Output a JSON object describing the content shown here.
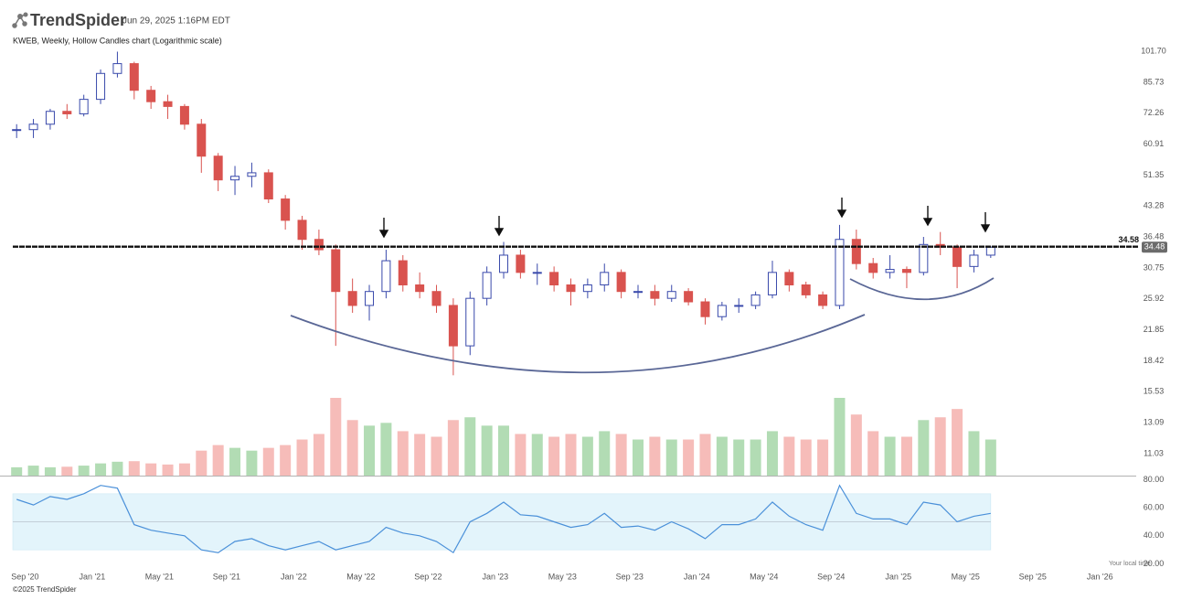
{
  "chart_data": {
    "type": "candlestick",
    "brand": "TrendSpider",
    "timestamp": "Jun 29, 2025 1:16PM EDT",
    "title": "KWEB, Weekly, Hollow Candles chart (Logarithmic scale)",
    "footer": "©2025 TrendSpider",
    "local_time_note": "Your local time",
    "log_scale": true,
    "grid": false,
    "up_color": "#3949ab",
    "down_color": "#d9534f",
    "volume_up_color": "#a5d6a7",
    "volume_down_color": "#f4b0ad",
    "x": [
      "2020-08",
      "2020-09",
      "2020-10",
      "2020-11",
      "2020-12",
      "2021-01",
      "2021-02",
      "2021-03",
      "2021-04",
      "2021-05",
      "2021-06",
      "2021-07",
      "2021-08",
      "2021-09",
      "2021-10",
      "2021-11",
      "2021-12",
      "2022-01",
      "2022-02",
      "2022-03",
      "2022-04",
      "2022-05",
      "2022-06",
      "2022-07",
      "2022-08",
      "2022-09",
      "2022-10",
      "2022-11",
      "2022-12",
      "2023-01",
      "2023-02",
      "2023-03",
      "2023-04",
      "2023-05",
      "2023-06",
      "2023-07",
      "2023-08",
      "2023-09",
      "2023-10",
      "2023-11",
      "2023-12",
      "2024-01",
      "2024-02",
      "2024-03",
      "2024-04",
      "2024-05",
      "2024-06",
      "2024-07",
      "2024-08",
      "2024-09",
      "2024-10",
      "2024-11",
      "2024-12",
      "2025-01",
      "2025-02",
      "2025-03",
      "2025-04",
      "2025-05",
      "2025-06"
    ],
    "open": [
      66,
      66,
      68,
      73,
      72,
      78,
      90,
      95,
      82,
      77,
      75,
      68,
      57,
      50,
      51,
      52,
      45,
      40,
      36,
      34,
      27,
      25,
      27,
      32,
      28,
      27,
      25,
      20,
      26,
      30,
      33,
      30,
      30,
      28,
      27,
      28,
      30,
      27,
      27,
      26,
      27,
      25.5,
      23.5,
      25,
      25,
      26.5,
      30,
      28,
      26.5,
      25,
      36,
      31.5,
      30,
      30.5,
      30,
      35,
      34.5,
      31,
      33
    ],
    "high": [
      68,
      70,
      74,
      76,
      80,
      92,
      101.5,
      96,
      84,
      80,
      76,
      70,
      58,
      54,
      55,
      53,
      46,
      41,
      38,
      35,
      29,
      28,
      34,
      33,
      30,
      28,
      26,
      27,
      31,
      35.5,
      34,
      31.5,
      31,
      29,
      29,
      31.5,
      30.5,
      28,
      28,
      28,
      27.5,
      26,
      25.5,
      26,
      27,
      32,
      30.5,
      28.5,
      27,
      39,
      38,
      32.5,
      33,
      31,
      36.5,
      37.5,
      35,
      34,
      34.6
    ],
    "low": [
      63,
      63,
      66,
      70,
      71,
      76,
      88,
      78,
      74,
      70,
      66,
      52,
      47,
      46,
      48,
      44,
      38,
      34,
      33,
      20,
      24,
      23,
      26,
      27,
      26,
      24,
      17,
      19,
      25,
      29,
      29,
      28,
      27,
      25,
      26,
      27,
      26,
      26,
      25,
      25.5,
      25,
      22.5,
      23,
      24,
      24.5,
      26,
      27,
      26,
      24.5,
      24.5,
      30.5,
      29,
      29,
      27.5,
      29.5,
      33,
      27.5,
      30,
      32.5
    ],
    "close": [
      66,
      68,
      73,
      72,
      78,
      90,
      95,
      82,
      77,
      75,
      68,
      57,
      50,
      51,
      52,
      45,
      40,
      36,
      34,
      27,
      25,
      27,
      32,
      28,
      27,
      25,
      20,
      26,
      30,
      33,
      30,
      30,
      28,
      27,
      28,
      30,
      27,
      27,
      26,
      27,
      25.5,
      23.5,
      25,
      25,
      26.5,
      30,
      28,
      26.5,
      25,
      36,
      31.5,
      30,
      30.5,
      30,
      35,
      34.5,
      31,
      33,
      34.48
    ],
    "volume": [
      1.5,
      1.8,
      1.5,
      1.6,
      1.8,
      2.2,
      2.5,
      2.6,
      2.2,
      2.0,
      2.2,
      4.5,
      5.5,
      5.0,
      4.5,
      5.0,
      5.5,
      6.5,
      7.5,
      14,
      10,
      9,
      9.5,
      8,
      7.5,
      7,
      10,
      10.5,
      9,
      9,
      7.5,
      7.5,
      7,
      7.5,
      7,
      8,
      7.5,
      6.5,
      7,
      6.5,
      6.5,
      7.5,
      7,
      6.5,
      6.5,
      8,
      7,
      6.5,
      6.5,
      14,
      11,
      8,
      7,
      7,
      10,
      10.5,
      12,
      8,
      6.5
    ],
    "ylim": [
      9.77,
      108.1
    ],
    "yticks": [
      {
        "value": 101.7,
        "label": "101.70"
      },
      85.73,
      72.26,
      60.91,
      51.35,
      43.28,
      36.48,
      30.75,
      25.92,
      21.85,
      18.42,
      15.53,
      13.09,
      11.03
    ],
    "xlim": [
      "2020-08",
      "2026-03"
    ],
    "xticks": [
      {
        "value": "2020-09",
        "label": "Sep '20"
      },
      {
        "value": "2021-01",
        "label": "Jan '21"
      },
      {
        "value": "2021-05",
        "label": "May '21"
      },
      {
        "value": "2021-09",
        "label": "Sep '21"
      },
      {
        "value": "2022-01",
        "label": "Jan '22"
      },
      {
        "value": "2022-05",
        "label": "May '22"
      },
      {
        "value": "2022-09",
        "label": "Sep '22"
      },
      {
        "value": "2023-01",
        "label": "Jan '23"
      },
      {
        "value": "2023-05",
        "label": "May '23"
      },
      {
        "value": "2023-09",
        "label": "Sep '23"
      },
      {
        "value": "2024-01",
        "label": "Jan '24"
      },
      {
        "value": "2024-05",
        "label": "May '24"
      },
      {
        "value": "2024-09",
        "label": "Sep '24"
      },
      {
        "value": "2025-01",
        "label": "Jan '25"
      },
      {
        "value": "2025-05",
        "label": "May '25"
      },
      {
        "value": "2025-09",
        "label": "Sep '25"
      },
      {
        "value": "2026-01",
        "label": "Jan '26"
      }
    ],
    "level_line": 34.58,
    "last_price": 34.48,
    "rsi": {
      "color": "#4a90d9",
      "band_color": "#e3f4fb",
      "values": [
        66,
        62,
        68,
        66,
        70,
        76,
        74,
        48,
        44,
        42,
        40,
        30,
        28,
        36,
        38,
        33,
        30,
        33,
        36,
        30,
        33,
        36,
        46,
        42,
        40,
        36,
        28,
        50,
        56,
        64,
        55,
        54,
        50,
        46,
        48,
        56,
        46,
        47,
        44,
        50,
        45,
        38,
        48,
        48,
        52,
        64,
        54,
        48,
        44,
        76,
        56,
        52,
        52,
        48,
        64,
        62,
        50,
        54,
        56
      ],
      "ylim": [
        17.7,
        82.3
      ],
      "yticks": [
        {
          "value": 80,
          "label": "80.00"
        },
        {
          "value": 60,
          "label": "60.00"
        },
        {
          "value": 40,
          "label": "40.00"
        },
        {
          "value": 20,
          "label": "20.00"
        }
      ],
      "band": [
        30,
        70
      ],
      "midline": 50
    }
  }
}
